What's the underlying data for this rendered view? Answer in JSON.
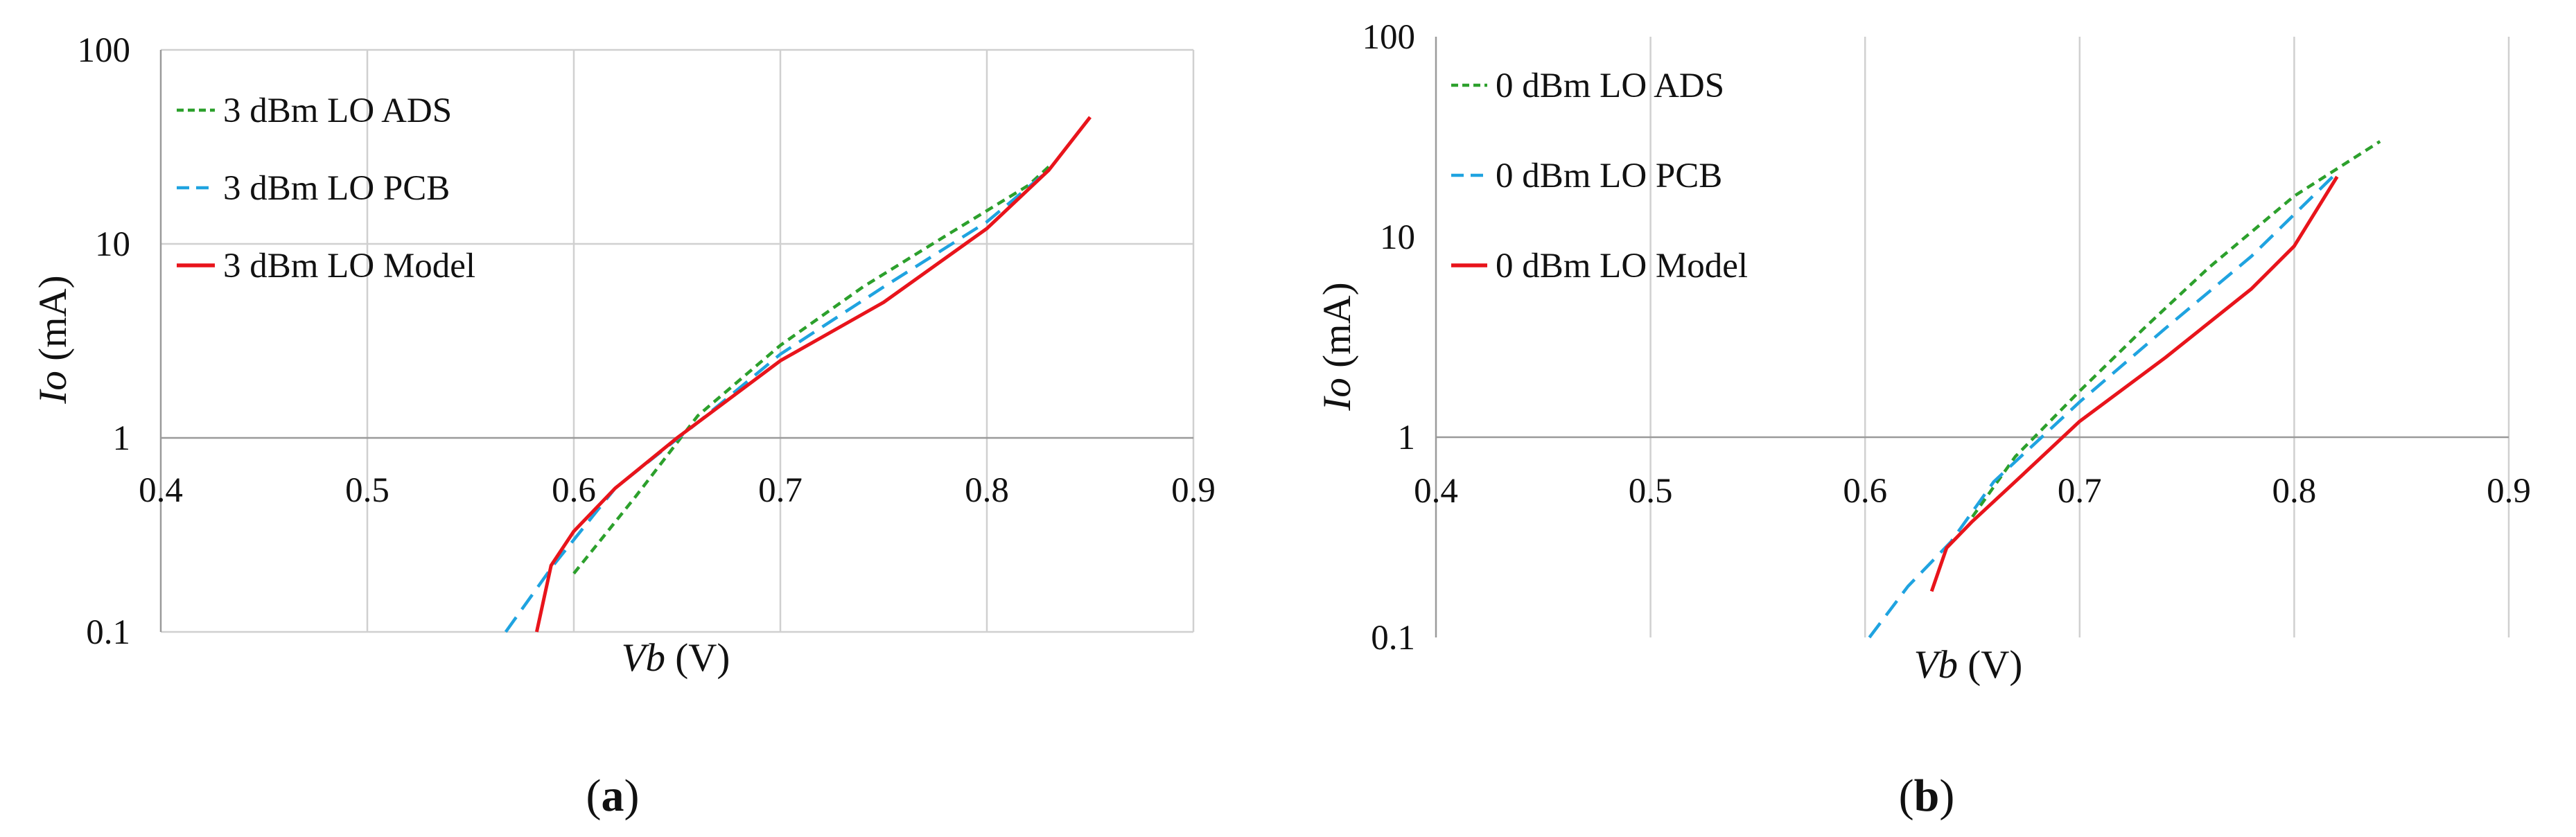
{
  "chart_data": [
    {
      "type": "line",
      "panel_label": "(a)",
      "panel_letter": "a",
      "xlabel_var": "Vb",
      "xlabel_unit": " (V)",
      "ylabel_var": "Io",
      "ylabel_unit": " (mA)",
      "x_scale": "linear",
      "y_scale": "log",
      "xlim": [
        0.4,
        0.9
      ],
      "ylim": [
        0.1,
        100
      ],
      "x_ticks": [
        "0.4",
        "0.5",
        "0.6",
        "0.7",
        "0.8",
        "0.9"
      ],
      "y_ticks": [
        "0.1",
        "1",
        "10",
        "100"
      ],
      "grid": "vertical and horizontal major gridlines",
      "legend_position": "top-left",
      "series": [
        {
          "name": "3 dBm LO ADS",
          "color": "#2ca02c",
          "dash": "short-dash",
          "points": [
            [
              0.6,
              0.2
            ],
            [
              0.63,
              0.5
            ],
            [
              0.66,
              1.3
            ],
            [
              0.7,
              3.0
            ],
            [
              0.74,
              6.0
            ],
            [
              0.78,
              11.0
            ],
            [
              0.82,
              20.0
            ],
            [
              0.83,
              25.0
            ]
          ]
        },
        {
          "name": "3 dBm LO PCB",
          "color": "#1fa3e0",
          "dash": "long-dash",
          "points": [
            [
              0.567,
              0.1
            ],
            [
              0.59,
              0.22
            ],
            [
              0.62,
              0.55
            ],
            [
              0.66,
              1.2
            ],
            [
              0.7,
              2.7
            ],
            [
              0.75,
              6.0
            ],
            [
              0.8,
              13.0
            ],
            [
              0.83,
              24.0
            ]
          ]
        },
        {
          "name": "3 dBm LO Model",
          "color": "#e8141b",
          "dash": "solid",
          "points": [
            [
              0.582,
              0.1
            ],
            [
              0.589,
              0.22
            ],
            [
              0.6,
              0.33
            ],
            [
              0.62,
              0.55
            ],
            [
              0.65,
              1.0
            ],
            [
              0.7,
              2.5
            ],
            [
              0.75,
              5.0
            ],
            [
              0.8,
              12.0
            ],
            [
              0.83,
              24.0
            ],
            [
              0.85,
              45.0
            ]
          ]
        }
      ]
    },
    {
      "type": "line",
      "panel_label": "(b)",
      "panel_letter": "b",
      "xlabel_var": "Vb",
      "xlabel_unit": " (V)",
      "ylabel_var": "Io",
      "ylabel_unit": " (mA)",
      "x_scale": "linear",
      "y_scale": "log",
      "xlim": [
        0.4,
        0.9
      ],
      "ylim": [
        0.1,
        100
      ],
      "x_ticks": [
        "0.4",
        "0.5",
        "0.6",
        "0.7",
        "0.8",
        "0.9"
      ],
      "y_ticks": [
        "0.1",
        "1",
        "10",
        "100"
      ],
      "grid": "vertical gridlines",
      "legend_position": "top-left",
      "series": [
        {
          "name": "0 dBm LO ADS",
          "color": "#2ca02c",
          "dash": "short-dash",
          "points": [
            [
              0.65,
              0.4
            ],
            [
              0.67,
              0.8
            ],
            [
              0.7,
              1.7
            ],
            [
              0.73,
              3.5
            ],
            [
              0.76,
              7.0
            ],
            [
              0.8,
              16.0
            ],
            [
              0.84,
              30.0
            ]
          ]
        },
        {
          "name": "0 dBm LO PCB",
          "color": "#1fa3e0",
          "dash": "long-dash",
          "points": [
            [
              0.602,
              0.1
            ],
            [
              0.62,
              0.18
            ],
            [
              0.64,
              0.3
            ],
            [
              0.66,
              0.6
            ],
            [
              0.7,
              1.5
            ],
            [
              0.74,
              3.5
            ],
            [
              0.78,
              8.0
            ],
            [
              0.82,
              21.0
            ]
          ]
        },
        {
          "name": "0 dBm LO Model",
          "color": "#e8141b",
          "dash": "solid",
          "points": [
            [
              0.631,
              0.17
            ],
            [
              0.638,
              0.28
            ],
            [
              0.65,
              0.38
            ],
            [
              0.67,
              0.6
            ],
            [
              0.7,
              1.2
            ],
            [
              0.74,
              2.5
            ],
            [
              0.78,
              5.5
            ],
            [
              0.8,
              9.0
            ],
            [
              0.82,
              20.0
            ]
          ]
        }
      ]
    }
  ]
}
